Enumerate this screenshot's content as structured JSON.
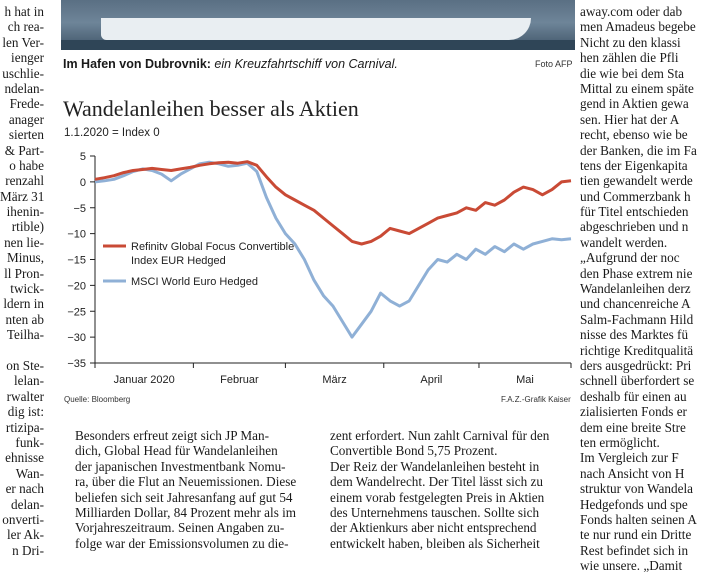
{
  "left_column": [
    "h hat in",
    "ch rea-",
    "len Ver-",
    "ienger",
    "uschlie-",
    "ndelan-",
    "Frede-",
    "anager",
    "sierten",
    "& Part-",
    "o habe",
    "renzahl",
    "März 31",
    "ihenin-",
    "rtible)",
    "nen lie-",
    "Minus,",
    "ll Pron-",
    "twick-",
    "ldern in",
    "nten ab",
    "Teilha-",
    "",
    "on Ste-",
    "lelan-",
    "rwalter",
    "dig ist:",
    "rtizipa-",
    "funk-",
    "ehnisse",
    "Wan-",
    "er nach",
    "delan-",
    "onverti-",
    "ler Ak-",
    "n Dri-"
  ],
  "right_column": [
    "away.com oder dab",
    "men Amadeus begebe",
    "Nicht zu den klassi",
    "hen zählen die Pfli",
    "die wie bei dem Sta",
    "Mittal zu einem späte",
    "gend in Aktien gewa",
    "sen. Hier hat der A",
    "recht, ebenso wie be",
    "der Banken, die im Fa",
    "tens der Eigenkapita",
    "tien gewandelt werde",
    "und Commerzbank h",
    "für Titel entschieden",
    "abgeschrieben und n",
    "wandelt werden.",
    "„Aufgrund der noc",
    "den Phase extrem nie",
    "Wandelanleihen derz",
    "und chancenreiche A",
    "Salm-Fachmann Hild",
    "nisse des Marktes fü",
    "richtige Kreditqualitä",
    "ders ausgedrückt: Pri",
    "schnell überfordert se",
    "deshalb für einen au",
    "zialisierten Fonds er",
    "dem eine breite Stre",
    "ten ermöglicht.",
    "Im Vergleich zur F",
    "nach Ansicht von H",
    "struktur von Wandela",
    "Hedgefonds und spe",
    "Fonds halten seinen A",
    "te nur rund ein Dritte",
    "Rest befindet sich in",
    "wie unsere. „Damit"
  ],
  "photo": {
    "caption_bold": "Im Hafen von Dubrovnik:",
    "caption_italic": " ein Kreuzfahrtschiff von Carnival.",
    "credit": "Foto AFP"
  },
  "chart": {
    "title": "Wandelanleihen besser als Aktien",
    "subtitle": "1.1.2020 = Index 0",
    "source": "Quelle: Bloomberg",
    "credit": "F.A.Z.-Grafik Kaiser"
  },
  "chart_data": {
    "type": "line",
    "title": "Wandelanleihen besser als Aktien",
    "subtitle": "1.1.2020 = Index 0",
    "x_tick_labels": [
      "Januar 2020",
      "Februar",
      "März",
      "April",
      "Mai"
    ],
    "y_ticks": [
      5,
      0,
      -5,
      -10,
      -15,
      -20,
      -25,
      -30,
      -35
    ],
    "ylim": [
      -35,
      5
    ],
    "xlim": [
      0,
      150
    ],
    "grid": false,
    "legend_position": "left-middle",
    "series": [
      {
        "name": "Refinitv Global Focus Convertible Index EUR Hedged",
        "color": "#c94a35",
        "x": [
          0,
          3,
          6,
          9,
          12,
          15,
          18,
          21,
          24,
          27,
          30,
          33,
          36,
          39,
          42,
          45,
          48,
          51,
          54,
          57,
          60,
          63,
          66,
          69,
          72,
          75,
          78,
          81,
          84,
          87,
          90,
          93,
          96,
          99,
          102,
          105,
          108,
          111,
          114,
          117,
          120,
          123,
          126,
          129,
          132,
          135,
          138,
          141,
          144,
          147,
          150
        ],
        "y": [
          0.5,
          0.8,
          1.2,
          1.8,
          2.2,
          2.4,
          2.6,
          2.4,
          2.2,
          2.5,
          2.8,
          3.2,
          3.5,
          3.7,
          3.8,
          3.6,
          3.9,
          3.2,
          1.0,
          -1.0,
          -2.5,
          -3.5,
          -4.5,
          -5.5,
          -7.0,
          -8.5,
          -10.0,
          -11.5,
          -12.0,
          -11.5,
          -10.5,
          -9.0,
          -9.5,
          -10.0,
          -9.0,
          -8.0,
          -7.0,
          -6.5,
          -6.0,
          -5.0,
          -5.5,
          -4.0,
          -4.5,
          -3.5,
          -2.0,
          -1.0,
          -1.5,
          -2.5,
          -1.5,
          0.0,
          0.2
        ]
      },
      {
        "name": "MSCI World Euro Hedged",
        "color": "#8fb0d6",
        "x": [
          0,
          3,
          6,
          9,
          12,
          15,
          18,
          21,
          24,
          27,
          30,
          33,
          36,
          39,
          42,
          45,
          48,
          51,
          54,
          57,
          60,
          63,
          66,
          69,
          72,
          75,
          78,
          81,
          84,
          87,
          90,
          93,
          96,
          99,
          102,
          105,
          108,
          111,
          114,
          117,
          120,
          123,
          126,
          129,
          132,
          135,
          138,
          141,
          144,
          147,
          150
        ],
        "y": [
          0.0,
          0.2,
          0.5,
          1.2,
          2.0,
          2.5,
          2.2,
          1.5,
          0.2,
          1.5,
          2.5,
          3.5,
          3.8,
          3.5,
          3.0,
          3.2,
          3.6,
          2.0,
          -3.0,
          -7.0,
          -10.0,
          -12.0,
          -15.0,
          -19.0,
          -22.0,
          -24.0,
          -27.0,
          -30.0,
          -27.5,
          -25.0,
          -21.5,
          -23.0,
          -24.0,
          -23.0,
          -20.0,
          -17.0,
          -15.0,
          -15.5,
          -14.0,
          -15.0,
          -13.0,
          -14.0,
          -12.5,
          -13.5,
          -12.0,
          -13.0,
          -12.0,
          -11.5,
          -11.0,
          -11.2,
          -11.0
        ]
      }
    ]
  },
  "body_col_1": [
    "Besonders erfreut zeigt sich JP Man-",
    "dich, Global Head für Wandelanleihen",
    "der japanischen Investmentbank Nomu-",
    "ra, über die Flut an Neuemissionen. Diese",
    "beliefen sich seit Jahresanfang auf gut 54",
    "Milliarden Dollar, 84 Prozent mehr als im",
    "Vorjahreszeitraum. Seinen Angaben zu-",
    "folge war der Emissionsvolumen zu die-"
  ],
  "body_col_2": [
    "zent erfordert. Nun zahlt Carnival für den",
    "Convertible Bond 5,75 Prozent.",
    "Der Reiz der Wandelanleihen besteht in",
    "dem Wandelrecht. Der Titel lässt sich zu",
    "einem vorab festgelegten Preis in Aktien",
    "des Unternehmens tauschen. Sollte sich",
    "der Aktienkurs aber nicht entsprechend",
    "entwickelt haben, bleiben als Sicherheit"
  ]
}
